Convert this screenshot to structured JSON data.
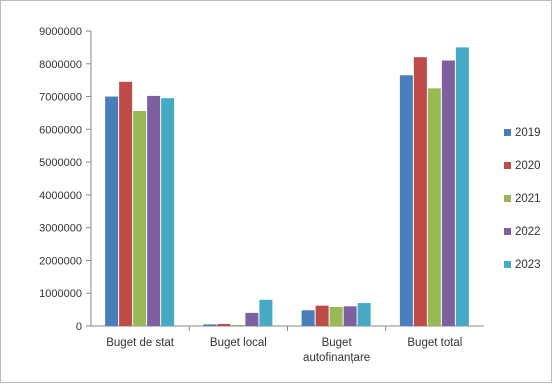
{
  "chart_data": {
    "type": "bar",
    "title": "",
    "xlabel": "",
    "ylabel": "",
    "categories": [
      [
        "Buget de stat"
      ],
      [
        "Buget local"
      ],
      [
        "Buget",
        "autofinanțare"
      ],
      [
        "Buget total"
      ]
    ],
    "series": [
      {
        "name": "2019",
        "color": "#4a7ebb",
        "values": [
          7000000,
          50000,
          480000,
          7650000
        ]
      },
      {
        "name": "2020",
        "color": "#be4b48",
        "values": [
          7450000,
          60000,
          620000,
          8200000
        ]
      },
      {
        "name": "2021",
        "color": "#98b954",
        "values": [
          6560000,
          30000,
          580000,
          7250000
        ]
      },
      {
        "name": "2022",
        "color": "#7d60a0",
        "values": [
          7020000,
          400000,
          600000,
          8100000
        ]
      },
      {
        "name": "2023",
        "color": "#46aac5",
        "values": [
          6950000,
          800000,
          700000,
          8500000
        ]
      }
    ],
    "ylim": [
      0,
      9000000
    ],
    "yticks": [
      "0",
      "1000000",
      "2000000",
      "3000000",
      "4000000",
      "5000000",
      "6000000",
      "7000000",
      "8000000",
      "9000000"
    ],
    "grid": false,
    "legend_position": "right"
  }
}
